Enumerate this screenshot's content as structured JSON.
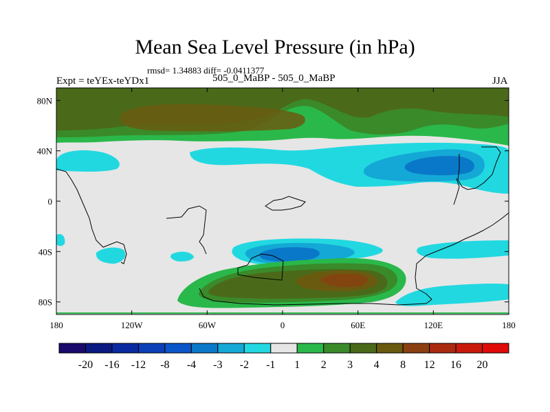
{
  "title": "Mean Sea Level Pressure (in hPa)",
  "stats_text": "rmsd= 1.34883 diff= -0.0411377",
  "experiment_label": "Expt = teYEx-teYDx1",
  "comparison_label": "505_0_MaBP - 505_0_MaBP",
  "season_label": "JJA",
  "chart_data": {
    "type": "map-contour",
    "xaxis": {
      "range": [
        -180,
        180
      ],
      "ticks": [
        {
          "value": -180,
          "label": "180"
        },
        {
          "value": -120,
          "label": "120W"
        },
        {
          "value": -60,
          "label": "60W"
        },
        {
          "value": 0,
          "label": "0"
        },
        {
          "value": 60,
          "label": "60E"
        },
        {
          "value": 120,
          "label": "120E"
        },
        {
          "value": 180,
          "label": "180"
        }
      ]
    },
    "yaxis": {
      "range": [
        -90,
        90
      ],
      "ticks": [
        {
          "value": 80,
          "label": "80N"
        },
        {
          "value": 40,
          "label": "40N"
        },
        {
          "value": 0,
          "label": "0"
        },
        {
          "value": -40,
          "label": "40S"
        },
        {
          "value": -80,
          "label": "80S"
        }
      ]
    },
    "colorbar": {
      "levels": [
        "-20",
        "-16",
        "-12",
        "-8",
        "-4",
        "-3",
        "-2",
        "-1",
        "1",
        "2",
        "3",
        "4",
        "8",
        "12",
        "16",
        "20"
      ],
      "colors": [
        "#1a0a6b",
        "#0a1a80",
        "#0a2aa0",
        "#0a3fb8",
        "#0a56c8",
        "#0a78c8",
        "#14a8d6",
        "#22d8e0",
        "#e6e6e6",
        "#2ab84a",
        "#3a8a2a",
        "#4a6a1a",
        "#6a5a10",
        "#8a4010",
        "#aa2a10",
        "#c81a0a",
        "#e00a0a"
      ]
    }
  }
}
